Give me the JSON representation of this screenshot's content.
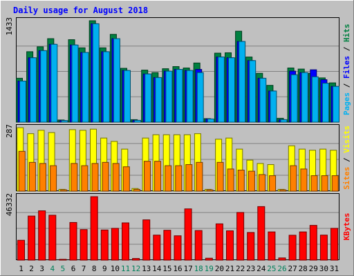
{
  "chart_data": {
    "type": "bar",
    "title": "Daily usage for August 2018",
    "categories": [
      "1",
      "2",
      "3",
      "4",
      "5",
      "6",
      "7",
      "8",
      "9",
      "10",
      "11",
      "12",
      "13",
      "14",
      "15",
      "16",
      "17",
      "18",
      "19",
      "20",
      "21",
      "22",
      "23",
      "24",
      "25",
      "26",
      "27",
      "28",
      "29",
      "30",
      "31"
    ],
    "weekend_days": [
      "4",
      "5",
      "11",
      "12",
      "18",
      "19",
      "25",
      "26"
    ],
    "panels": [
      {
        "id": "hits-panel",
        "max_label": "1433",
        "ylim": [
          0,
          1433
        ],
        "grid": true,
        "side_label_parts": [
          {
            "text": "Pages",
            "color": "#00b0f0"
          },
          {
            "text": " / ",
            "color": "#000000"
          },
          {
            "text": "Files",
            "color": "#0000ff"
          },
          {
            "text": " / ",
            "color": "#000000"
          },
          {
            "text": "Hits",
            "color": "#008040"
          }
        ],
        "series": [
          {
            "name": "Hits",
            "color": "#008040",
            "values": [
              620,
              995,
              1065,
              1180,
              30,
              1165,
              1050,
              1433,
              1050,
              1240,
              760,
              35,
              735,
              700,
              755,
              785,
              765,
              835,
              50,
              975,
              980,
              1285,
              920,
              690,
              520,
              55,
              765,
              750,
              690,
              625,
              555
            ]
          },
          {
            "name": "Files",
            "color": "#0000ff",
            "values": [
              580,
              910,
              1010,
              1100,
              22,
              1090,
              985,
              1390,
              995,
              1180,
              730,
              25,
              680,
              630,
              720,
              745,
              730,
              745,
              45,
              920,
              910,
              1140,
              870,
              620,
              440,
              35,
              720,
              700,
              740,
              600,
              505
            ]
          },
          {
            "name": "Pages",
            "color": "#00b0f0",
            "values": [
              580,
              910,
              1010,
              1100,
              22,
              1090,
              985,
              1390,
              995,
              1180,
              730,
              25,
              680,
              630,
              720,
              745,
              730,
              700,
              45,
              920,
              910,
              1140,
              870,
              620,
              440,
              35,
              670,
              700,
              640,
              550,
              505
            ]
          }
        ]
      },
      {
        "id": "visits-panel",
        "max_label": "287",
        "ylim": [
          0,
          287
        ],
        "grid": true,
        "side_label_parts": [
          {
            "text": "Sites",
            "color": "#ff8000"
          },
          {
            "text": " / ",
            "color": "#000000"
          },
          {
            "text": "Visits",
            "color": "#ffff00"
          }
        ],
        "series": [
          {
            "name": "Visits",
            "color": "#ffff00",
            "values": [
              287,
              260,
              275,
              265,
              8,
              278,
              275,
              280,
              240,
              225,
              190,
              12,
              240,
              255,
              255,
              255,
              255,
              260,
              8,
              235,
              240,
              190,
              140,
              125,
              120,
              8,
              205,
              190,
              185,
              190,
              185
            ]
          },
          {
            "name": "Sites",
            "color": "#ff8000",
            "values": [
              180,
              130,
              125,
              115,
              6,
              125,
              115,
              125,
              130,
              125,
              110,
              8,
              135,
              135,
              115,
              115,
              120,
              130,
              6,
              130,
              100,
              95,
              90,
              75,
              70,
              6,
              115,
              100,
              70,
              70,
              70
            ]
          }
        ]
      },
      {
        "id": "kbytes-panel",
        "max_label": "46332",
        "ylim": [
          0,
          46332
        ],
        "grid": true,
        "side_label_parts": [
          {
            "text": "KBytes",
            "color": "#ff0000"
          }
        ],
        "series": [
          {
            "name": "KBytes",
            "color": "#ff0000",
            "values": [
              14500,
              32200,
              36000,
              32800,
              600,
              27500,
              22300,
              46332,
              22000,
              23200,
              27200,
              1200,
              29400,
              18300,
              21800,
              17800,
              37400,
              21600,
              1400,
              26500,
              21400,
              34800,
              20200,
              39100,
              20600,
              1600,
              18200,
              20600,
              25400,
              18300,
              23200
            ]
          }
        ]
      }
    ]
  }
}
